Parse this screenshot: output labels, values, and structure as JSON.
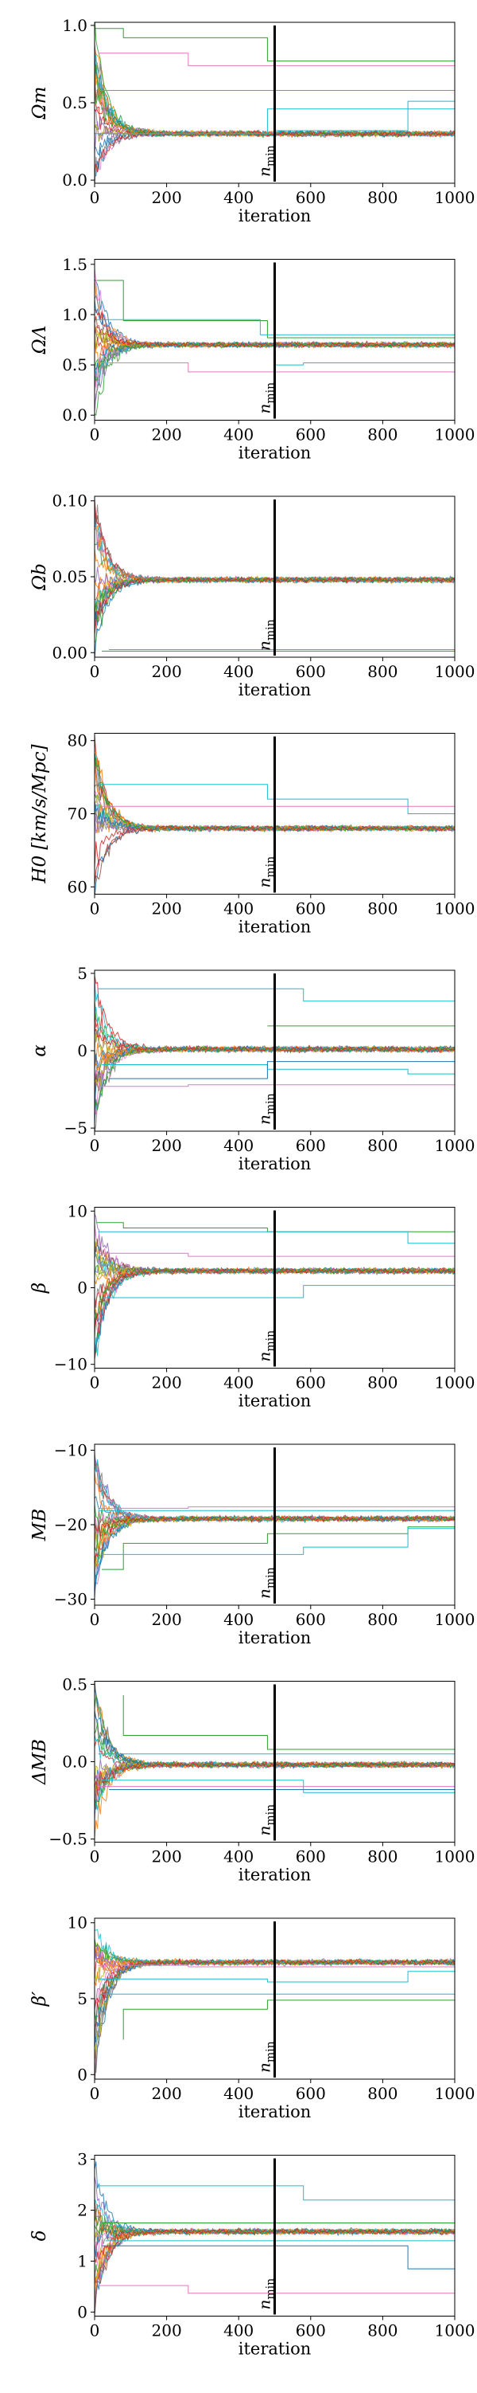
{
  "chart_data": [
    {
      "type": "line",
      "ylabel": "Ωm",
      "xlabel": "iteration",
      "xlim": [
        0,
        1000
      ],
      "xticks": [
        0,
        200,
        400,
        600,
        800,
        1000
      ],
      "ylim": [
        -0.02,
        1.02
      ],
      "yticks": [
        0.0,
        0.5,
        1.0
      ],
      "ytick_labels": [
        "0.0",
        "0.5",
        "1.0"
      ],
      "n_min": 500,
      "n_min_label": "n_min",
      "converged_value": 0.3,
      "initial_range": [
        0.0,
        1.0
      ],
      "stuck_walkers": [
        {
          "color": "#2ca02c",
          "steps": [
            [
              0,
              0.98
            ],
            [
              80,
              0.98
            ],
            [
              80,
              0.92
            ],
            [
              480,
              0.92
            ],
            [
              480,
              0.77
            ],
            [
              1000,
              0.77
            ]
          ]
        },
        {
          "color": "#e377c2",
          "steps": [
            [
              10,
              0.82
            ],
            [
              260,
              0.82
            ],
            [
              260,
              0.74
            ],
            [
              1000,
              0.74
            ]
          ]
        },
        {
          "color": "#17becf",
          "steps": [
            [
              5,
              0.58
            ],
            [
              1000,
              0.58
            ]
          ]
        },
        {
          "color": "#17becf",
          "steps": [
            [
              0,
              0.3
            ],
            [
              480,
              0.3
            ],
            [
              480,
              0.46
            ],
            [
              1000,
              0.46
            ]
          ]
        },
        {
          "color": "#17becf",
          "steps": [
            [
              500,
              0.32
            ],
            [
              870,
              0.32
            ],
            [
              870,
              0.51
            ],
            [
              1000,
              0.51
            ]
          ]
        }
      ]
    },
    {
      "type": "line",
      "ylabel": "ΩΛ",
      "xlabel": "iteration",
      "xlim": [
        0,
        1000
      ],
      "xticks": [
        0,
        200,
        400,
        600,
        800,
        1000
      ],
      "ylim": [
        -0.05,
        1.55
      ],
      "yticks": [
        0.0,
        0.5,
        1.0,
        1.5
      ],
      "ytick_labels": [
        "0.0",
        "0.5",
        "1.0",
        "1.5"
      ],
      "n_min": 500,
      "n_min_label": "n_min",
      "converged_value": 0.7,
      "initial_range": [
        0.0,
        1.45
      ],
      "stuck_walkers": [
        {
          "color": "#2ca02c",
          "steps": [
            [
              5,
              1.34
            ],
            [
              80,
              1.34
            ],
            [
              80,
              0.94
            ],
            [
              480,
              0.94
            ],
            [
              480,
              0.77
            ],
            [
              1000,
              0.77
            ]
          ]
        },
        {
          "color": "#e377c2",
          "steps": [
            [
              10,
              0.52
            ],
            [
              260,
              0.52
            ],
            [
              260,
              0.43
            ],
            [
              1000,
              0.43
            ]
          ]
        },
        {
          "color": "#17becf",
          "steps": [
            [
              0,
              0.95
            ],
            [
              460,
              0.95
            ],
            [
              460,
              0.8
            ],
            [
              1000,
              0.8
            ]
          ]
        },
        {
          "color": "#17becf",
          "steps": [
            [
              500,
              0.5
            ],
            [
              580,
              0.5
            ],
            [
              580,
              0.52
            ],
            [
              1000,
              0.52
            ]
          ]
        }
      ]
    },
    {
      "type": "line",
      "ylabel": "Ωb",
      "xlabel": "iteration",
      "xlim": [
        0,
        1000
      ],
      "xticks": [
        0,
        200,
        400,
        600,
        800,
        1000
      ],
      "ylim": [
        -0.003,
        0.103
      ],
      "yticks": [
        0.0,
        0.05,
        0.1
      ],
      "ytick_labels": [
        "0.00",
        "0.05",
        "0.10"
      ],
      "n_min": 500,
      "n_min_label": "n_min",
      "converged_value": 0.048,
      "initial_range": [
        0.0,
        0.1
      ],
      "stuck_walkers": [
        {
          "color": "#2ca02c",
          "steps": [
            [
              20,
              0.001
            ],
            [
              1000,
              0.001
            ]
          ]
        },
        {
          "color": "#17becf",
          "steps": [
            [
              40,
              0.002
            ],
            [
              1000,
              0.002
            ]
          ]
        }
      ]
    },
    {
      "type": "line",
      "ylabel": "H0 [km/s/Mpc]",
      "xlabel": "iteration",
      "xlim": [
        0,
        1000
      ],
      "xticks": [
        0,
        200,
        400,
        600,
        800,
        1000
      ],
      "ylim": [
        59,
        81
      ],
      "yticks": [
        60,
        70,
        80
      ],
      "ytick_labels": [
        "60",
        "70",
        "80"
      ],
      "n_min": 500,
      "n_min_label": "n_min",
      "converged_value": 68,
      "initial_range": [
        60,
        80
      ],
      "stuck_walkers": [
        {
          "color": "#17becf",
          "steps": [
            [
              10,
              74
            ],
            [
              480,
              74
            ],
            [
              480,
              72
            ],
            [
              870,
              72
            ],
            [
              870,
              70
            ],
            [
              1000,
              70
            ]
          ]
        },
        {
          "color": "#e377c2",
          "steps": [
            [
              20,
              71
            ],
            [
              1000,
              71
            ]
          ]
        }
      ]
    },
    {
      "type": "line",
      "ylabel": "α",
      "xlabel": "iteration",
      "xlim": [
        0,
        1000
      ],
      "xticks": [
        0,
        200,
        400,
        600,
        800,
        1000
      ],
      "ylim": [
        -5.2,
        5.2
      ],
      "yticks": [
        -5,
        0,
        5
      ],
      "ytick_labels": [
        "−5",
        "0",
        "5"
      ],
      "n_min": 500,
      "n_min_label": "n_min",
      "converged_value": 0.1,
      "initial_range": [
        -5,
        5
      ],
      "stuck_walkers": [
        {
          "color": "#17becf",
          "steps": [
            [
              10,
              4
            ],
            [
              580,
              4
            ],
            [
              580,
              3.2
            ],
            [
              1000,
              3.2
            ]
          ]
        },
        {
          "color": "#2ca02c",
          "steps": [
            [
              480,
              1.6
            ],
            [
              1000,
              1.6
            ]
          ]
        },
        {
          "color": "#17becf",
          "steps": [
            [
              20,
              -0.9
            ],
            [
              480,
              -0.9
            ],
            [
              480,
              -1.2
            ],
            [
              870,
              -1.2
            ],
            [
              870,
              -1.5
            ],
            [
              1000,
              -1.5
            ]
          ]
        },
        {
          "color": "#e377c2",
          "steps": [
            [
              10,
              -2.3
            ],
            [
              260,
              -2.3
            ],
            [
              260,
              -2.2
            ],
            [
              1000,
              -2.2
            ]
          ]
        },
        {
          "color": "#1f77b4",
          "steps": [
            [
              40,
              -1.8
            ],
            [
              480,
              -1.8
            ],
            [
              480,
              -0.7
            ],
            [
              1000,
              -0.7
            ]
          ]
        }
      ]
    },
    {
      "type": "line",
      "ylabel": "β",
      "xlabel": "iteration",
      "xlim": [
        0,
        1000
      ],
      "xticks": [
        0,
        200,
        400,
        600,
        800,
        1000
      ],
      "ylim": [
        -10.5,
        10.5
      ],
      "yticks": [
        -10,
        0,
        10
      ],
      "ytick_labels": [
        "−10",
        "0",
        "10"
      ],
      "n_min": 500,
      "n_min_label": "n_min",
      "converged_value": 2.2,
      "initial_range": [
        -10,
        10
      ],
      "stuck_walkers": [
        {
          "color": "#2ca02c",
          "steps": [
            [
              5,
              8.5
            ],
            [
              80,
              8.5
            ],
            [
              80,
              7.8
            ],
            [
              480,
              7.8
            ],
            [
              480,
              7.3
            ],
            [
              1000,
              7.3
            ]
          ]
        },
        {
          "color": "#17becf",
          "steps": [
            [
              10,
              7.3
            ],
            [
              870,
              7.3
            ],
            [
              870,
              5.8
            ],
            [
              1000,
              5.8
            ]
          ]
        },
        {
          "color": "#e377c2",
          "steps": [
            [
              10,
              4.5
            ],
            [
              260,
              4.5
            ],
            [
              260,
              4.1
            ],
            [
              1000,
              4.1
            ]
          ]
        },
        {
          "color": "#17becf",
          "steps": [
            [
              20,
              -1.3
            ],
            [
              580,
              -1.3
            ],
            [
              580,
              0.3
            ],
            [
              1000,
              0.3
            ]
          ]
        }
      ]
    },
    {
      "type": "line",
      "ylabel": "MB",
      "xlabel": "iteration",
      "xlim": [
        0,
        1000
      ],
      "xticks": [
        0,
        200,
        400,
        600,
        800,
        1000
      ],
      "ylim": [
        -30.8,
        -9.2
      ],
      "yticks": [
        -30,
        -20,
        -10
      ],
      "ytick_labels": [
        "−30",
        "−20",
        "−10"
      ],
      "n_min": 500,
      "n_min_label": "n_min",
      "converged_value": -19.2,
      "initial_range": [
        -30,
        -10
      ],
      "stuck_walkers": [
        {
          "color": "#e377c2",
          "steps": [
            [
              10,
              -17.8
            ],
            [
              260,
              -17.8
            ],
            [
              260,
              -17.6
            ],
            [
              1000,
              -17.6
            ]
          ]
        },
        {
          "color": "#17becf",
          "steps": [
            [
              10,
              -18.1
            ],
            [
              1000,
              -18.1
            ]
          ]
        },
        {
          "color": "#2ca02c",
          "steps": [
            [
              20,
              -26
            ],
            [
              80,
              -26
            ],
            [
              80,
              -22.5
            ],
            [
              480,
              -22.5
            ],
            [
              480,
              -21.2
            ],
            [
              870,
              -21.2
            ],
            [
              870,
              -20.3
            ],
            [
              1000,
              -20.3
            ]
          ]
        },
        {
          "color": "#17becf",
          "steps": [
            [
              20,
              -24
            ],
            [
              580,
              -24
            ],
            [
              580,
              -23
            ],
            [
              870,
              -23
            ],
            [
              870,
              -20.5
            ],
            [
              1000,
              -20.5
            ]
          ]
        }
      ]
    },
    {
      "type": "line",
      "ylabel": "ΔMB",
      "xlabel": "iteration",
      "xlim": [
        0,
        1000
      ],
      "xticks": [
        0,
        200,
        400,
        600,
        800,
        1000
      ],
      "ylim": [
        -0.52,
        0.52
      ],
      "yticks": [
        -0.5,
        0.0,
        0.5
      ],
      "ytick_labels": [
        "−0.5",
        "0.0",
        "0.5"
      ],
      "n_min": 500,
      "n_min_label": "n_min",
      "converged_value": -0.02,
      "initial_range": [
        -0.5,
        0.5
      ],
      "stuck_walkers": [
        {
          "color": "#2ca02c",
          "steps": [
            [
              80,
              0.43
            ],
            [
              80,
              0.17
            ],
            [
              480,
              0.17
            ],
            [
              480,
              0.08
            ],
            [
              1000,
              0.08
            ]
          ]
        },
        {
          "color": "#17becf",
          "steps": [
            [
              10,
              0.05
            ],
            [
              1000,
              0.05
            ]
          ]
        },
        {
          "color": "#e377c2",
          "steps": [
            [
              10,
              -0.16
            ],
            [
              1000,
              -0.16
            ]
          ]
        },
        {
          "color": "#17becf",
          "steps": [
            [
              20,
              -0.12
            ],
            [
              580,
              -0.12
            ],
            [
              580,
              -0.2
            ],
            [
              1000,
              -0.2
            ]
          ]
        },
        {
          "color": "#1f77b4",
          "steps": [
            [
              40,
              -0.18
            ],
            [
              1000,
              -0.18
            ]
          ]
        }
      ]
    },
    {
      "type": "line",
      "ylabel": "β′",
      "xlabel": "iteration",
      "xlim": [
        0,
        1000
      ],
      "xticks": [
        0,
        200,
        400,
        600,
        800,
        1000
      ],
      "ylim": [
        -0.3,
        10.3
      ],
      "yticks": [
        0,
        5,
        10
      ],
      "ytick_labels": [
        "0",
        "5",
        "10"
      ],
      "n_min": 500,
      "n_min_label": "n_min",
      "converged_value": 7.4,
      "initial_range": [
        0,
        10
      ],
      "stuck_walkers": [
        {
          "color": "#e377c2",
          "steps": [
            [
              10,
              7.2
            ],
            [
              260,
              7.2
            ],
            [
              260,
              7.1
            ],
            [
              1000,
              7.1
            ]
          ]
        },
        {
          "color": "#17becf",
          "steps": [
            [
              10,
              6.3
            ],
            [
              480,
              6.3
            ],
            [
              480,
              6.1
            ],
            [
              870,
              6.1
            ],
            [
              870,
              6.8
            ],
            [
              1000,
              6.8
            ]
          ]
        },
        {
          "color": "#17becf",
          "steps": [
            [
              20,
              5.3
            ],
            [
              1000,
              5.3
            ]
          ]
        },
        {
          "color": "#2ca02c",
          "steps": [
            [
              80,
              2.3
            ],
            [
              80,
              4.3
            ],
            [
              480,
              4.3
            ],
            [
              480,
              4.9
            ],
            [
              1000,
              4.9
            ]
          ]
        }
      ]
    },
    {
      "type": "line",
      "ylabel": "δ",
      "xlabel": "iteration",
      "xlim": [
        0,
        1000
      ],
      "xticks": [
        0,
        200,
        400,
        600,
        800,
        1000
      ],
      "ylim": [
        -0.08,
        3.08
      ],
      "yticks": [
        0,
        1,
        2,
        3
      ],
      "ytick_labels": [
        "0",
        "1",
        "2",
        "3"
      ],
      "n_min": 500,
      "n_min_label": "n_min",
      "converged_value": 1.58,
      "initial_range": [
        0,
        3
      ],
      "stuck_walkers": [
        {
          "color": "#17becf",
          "steps": [
            [
              10,
              2.48
            ],
            [
              580,
              2.48
            ],
            [
              580,
              2.2
            ],
            [
              1000,
              2.2
            ]
          ]
        },
        {
          "color": "#2ca02c",
          "steps": [
            [
              20,
              1.75
            ],
            [
              1000,
              1.75
            ]
          ]
        },
        {
          "color": "#e377c2",
          "steps": [
            [
              10,
              0.52
            ],
            [
              260,
              0.52
            ],
            [
              260,
              0.37
            ],
            [
              1000,
              0.37
            ]
          ]
        },
        {
          "color": "#1f77b4",
          "steps": [
            [
              20,
              1.3
            ],
            [
              870,
              1.3
            ],
            [
              870,
              0.85
            ],
            [
              1000,
              0.85
            ]
          ]
        },
        {
          "color": "#17becf",
          "steps": [
            [
              30,
              1.4
            ],
            [
              1000,
              1.4
            ]
          ]
        }
      ]
    }
  ],
  "palette": [
    "#1f77b4",
    "#ff7f0e",
    "#2ca02c",
    "#d62728",
    "#9467bd",
    "#8c564b",
    "#e377c2",
    "#7f7f7f",
    "#bcbd22",
    "#17becf"
  ],
  "n_walkers_drawn": 24
}
